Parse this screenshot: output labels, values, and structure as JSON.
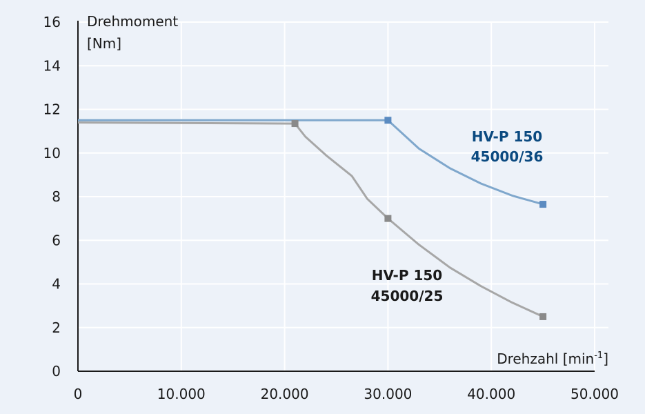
{
  "chart_data": {
    "type": "line",
    "title": "",
    "ylabel_line1": "Drehmoment",
    "ylabel_line2": "[Nm]",
    "xlabel": "Drehzahl [min",
    "xlabel_sup": "-1",
    "xlabel_close": "]",
    "xlim": [
      0,
      50000
    ],
    "ylim": [
      0,
      16
    ],
    "x_ticks": [
      0,
      10000,
      20000,
      30000,
      40000,
      50000
    ],
    "x_tick_labels": [
      "0",
      "10.000",
      "20.000",
      "30.000",
      "40.000",
      "50.000"
    ],
    "y_ticks": [
      0,
      2,
      4,
      6,
      8,
      10,
      12,
      14,
      16
    ],
    "y_tick_labels": [
      "0",
      "2",
      "4",
      "6",
      "8",
      "10",
      "12",
      "14",
      "16"
    ],
    "grid": true,
    "series": [
      {
        "name_line1": "HV-P 150",
        "name_line2": "45000/36",
        "color": "#7fa7cc",
        "marker_color": "#5b8bc1",
        "label_color": "#0b4a80",
        "x": [
          0,
          30000,
          33000,
          36000,
          39000,
          42000,
          45000
        ],
        "y": [
          11.5,
          11.5,
          10.2,
          9.3,
          8.6,
          8.05,
          7.65
        ],
        "markers": [
          [
            30000,
            11.5
          ],
          [
            45000,
            7.65
          ]
        ]
      },
      {
        "name_line1": "HV-P 150",
        "name_line2": "45000/25",
        "color": "#a7a7a7",
        "marker_color": "#8a8a8a",
        "label_color": "#1a1a1a",
        "x": [
          0,
          21000,
          22000,
          24000,
          26500,
          28000,
          30000,
          33000,
          36000,
          39000,
          42000,
          45000
        ],
        "y": [
          11.4,
          11.35,
          10.75,
          9.9,
          8.95,
          7.9,
          7.0,
          5.8,
          4.75,
          3.9,
          3.15,
          2.5
        ],
        "markers": [
          [
            21000,
            11.35
          ],
          [
            30000,
            7.0
          ],
          [
            45000,
            2.5
          ]
        ]
      }
    ]
  }
}
